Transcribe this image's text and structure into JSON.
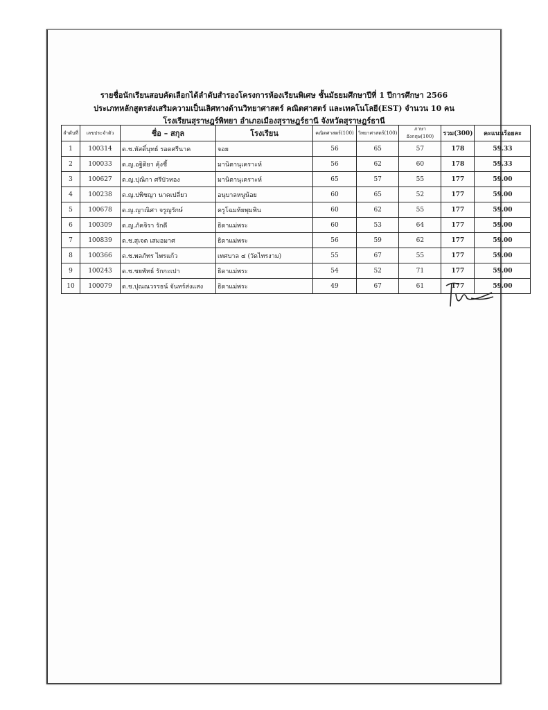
{
  "header": {
    "line1": "รายชื่อนักเรียนสอบคัดเลือกได้ลำดับสำรองโครงการห้องเรียนพิเศษ ชั้นมัธยมศึกษาปีที่ 1 ปีการศึกษา 2566",
    "line2": "ประเภทหลักสูตรส่งเสริมความเป็นเลิศทางด้านวิทยาศาสตร์ คณิตศาสตร์ และเทคโนโลยี(EST) จำนวน 10 คน",
    "line3": "โรงเรียนสุราษฎร์พิทยา อำเภอเมืองสุราษฎร์ธานี จังหวัดสุราษฎร์ธานี"
  },
  "table": {
    "columns": [
      "ลำดับที่",
      "เลขประจำตัว",
      "ชื่อ – สกุล",
      "โรงเรียน",
      "คณิตศาสตร์(100)",
      "วิทยาศาสตร์(100)",
      "ภาษาอังกฤษ(100)",
      "รวม(300)",
      "คะแนนร้อยละ"
    ],
    "rows": [
      [
        "1",
        "100314",
        "ด.ช.หัสดิ์นุทธ์ รอดศรีนาค",
        "จอย",
        "56",
        "65",
        "57",
        "178",
        "59.33"
      ],
      [
        "2",
        "100033",
        "ด.ญ.อฐิติยา คุ้งชี้",
        "มานิตานุเคราะห์",
        "56",
        "62",
        "60",
        "178",
        "59.33"
      ],
      [
        "3",
        "100627",
        "ด.ญ.ปุณิกา ศรีบัวทอง",
        "มานิตานุเคราะห์",
        "65",
        "57",
        "55",
        "177",
        "59.00"
      ],
      [
        "4",
        "100238",
        "ด.ญ.ปพิชญา นาคเปลี่ยว",
        "อนุบาลหนูน้อย",
        "60",
        "65",
        "52",
        "177",
        "59.00"
      ],
      [
        "5",
        "100678",
        "ด.ญ.ญาณิศา จรูญรักษ์",
        "ครูโฉมท้ยพุมพิน",
        "60",
        "62",
        "55",
        "177",
        "59.00"
      ],
      [
        "6",
        "100309",
        "ด.ญ.ภัคจิรา รักดี",
        "ธิดาแม่พระ",
        "60",
        "53",
        "64",
        "177",
        "59.00"
      ],
      [
        "7",
        "100839",
        "ด.ช.สุเจต เสมอมาศ",
        "ธิดาแม่พระ",
        "56",
        "59",
        "62",
        "177",
        "59.00"
      ],
      [
        "8",
        "100366",
        "ด.ช.พลภัทร ไพรแก้ว",
        "เทศบาล ๔ (วัดไทรงาม)",
        "55",
        "67",
        "55",
        "177",
        "59.00"
      ],
      [
        "9",
        "100243",
        "ด.ช.ชยพัทธ์ รักกะเปา",
        "ธิดาแม่พระ",
        "54",
        "52",
        "71",
        "177",
        "59.00"
      ],
      [
        "10",
        "100079",
        "ด.ช.ปุณณวรรธน์ จันทร์ส่งแสง",
        "ธิดาแม่พระ",
        "49",
        "67",
        "61",
        "177",
        "59.00"
      ]
    ]
  }
}
